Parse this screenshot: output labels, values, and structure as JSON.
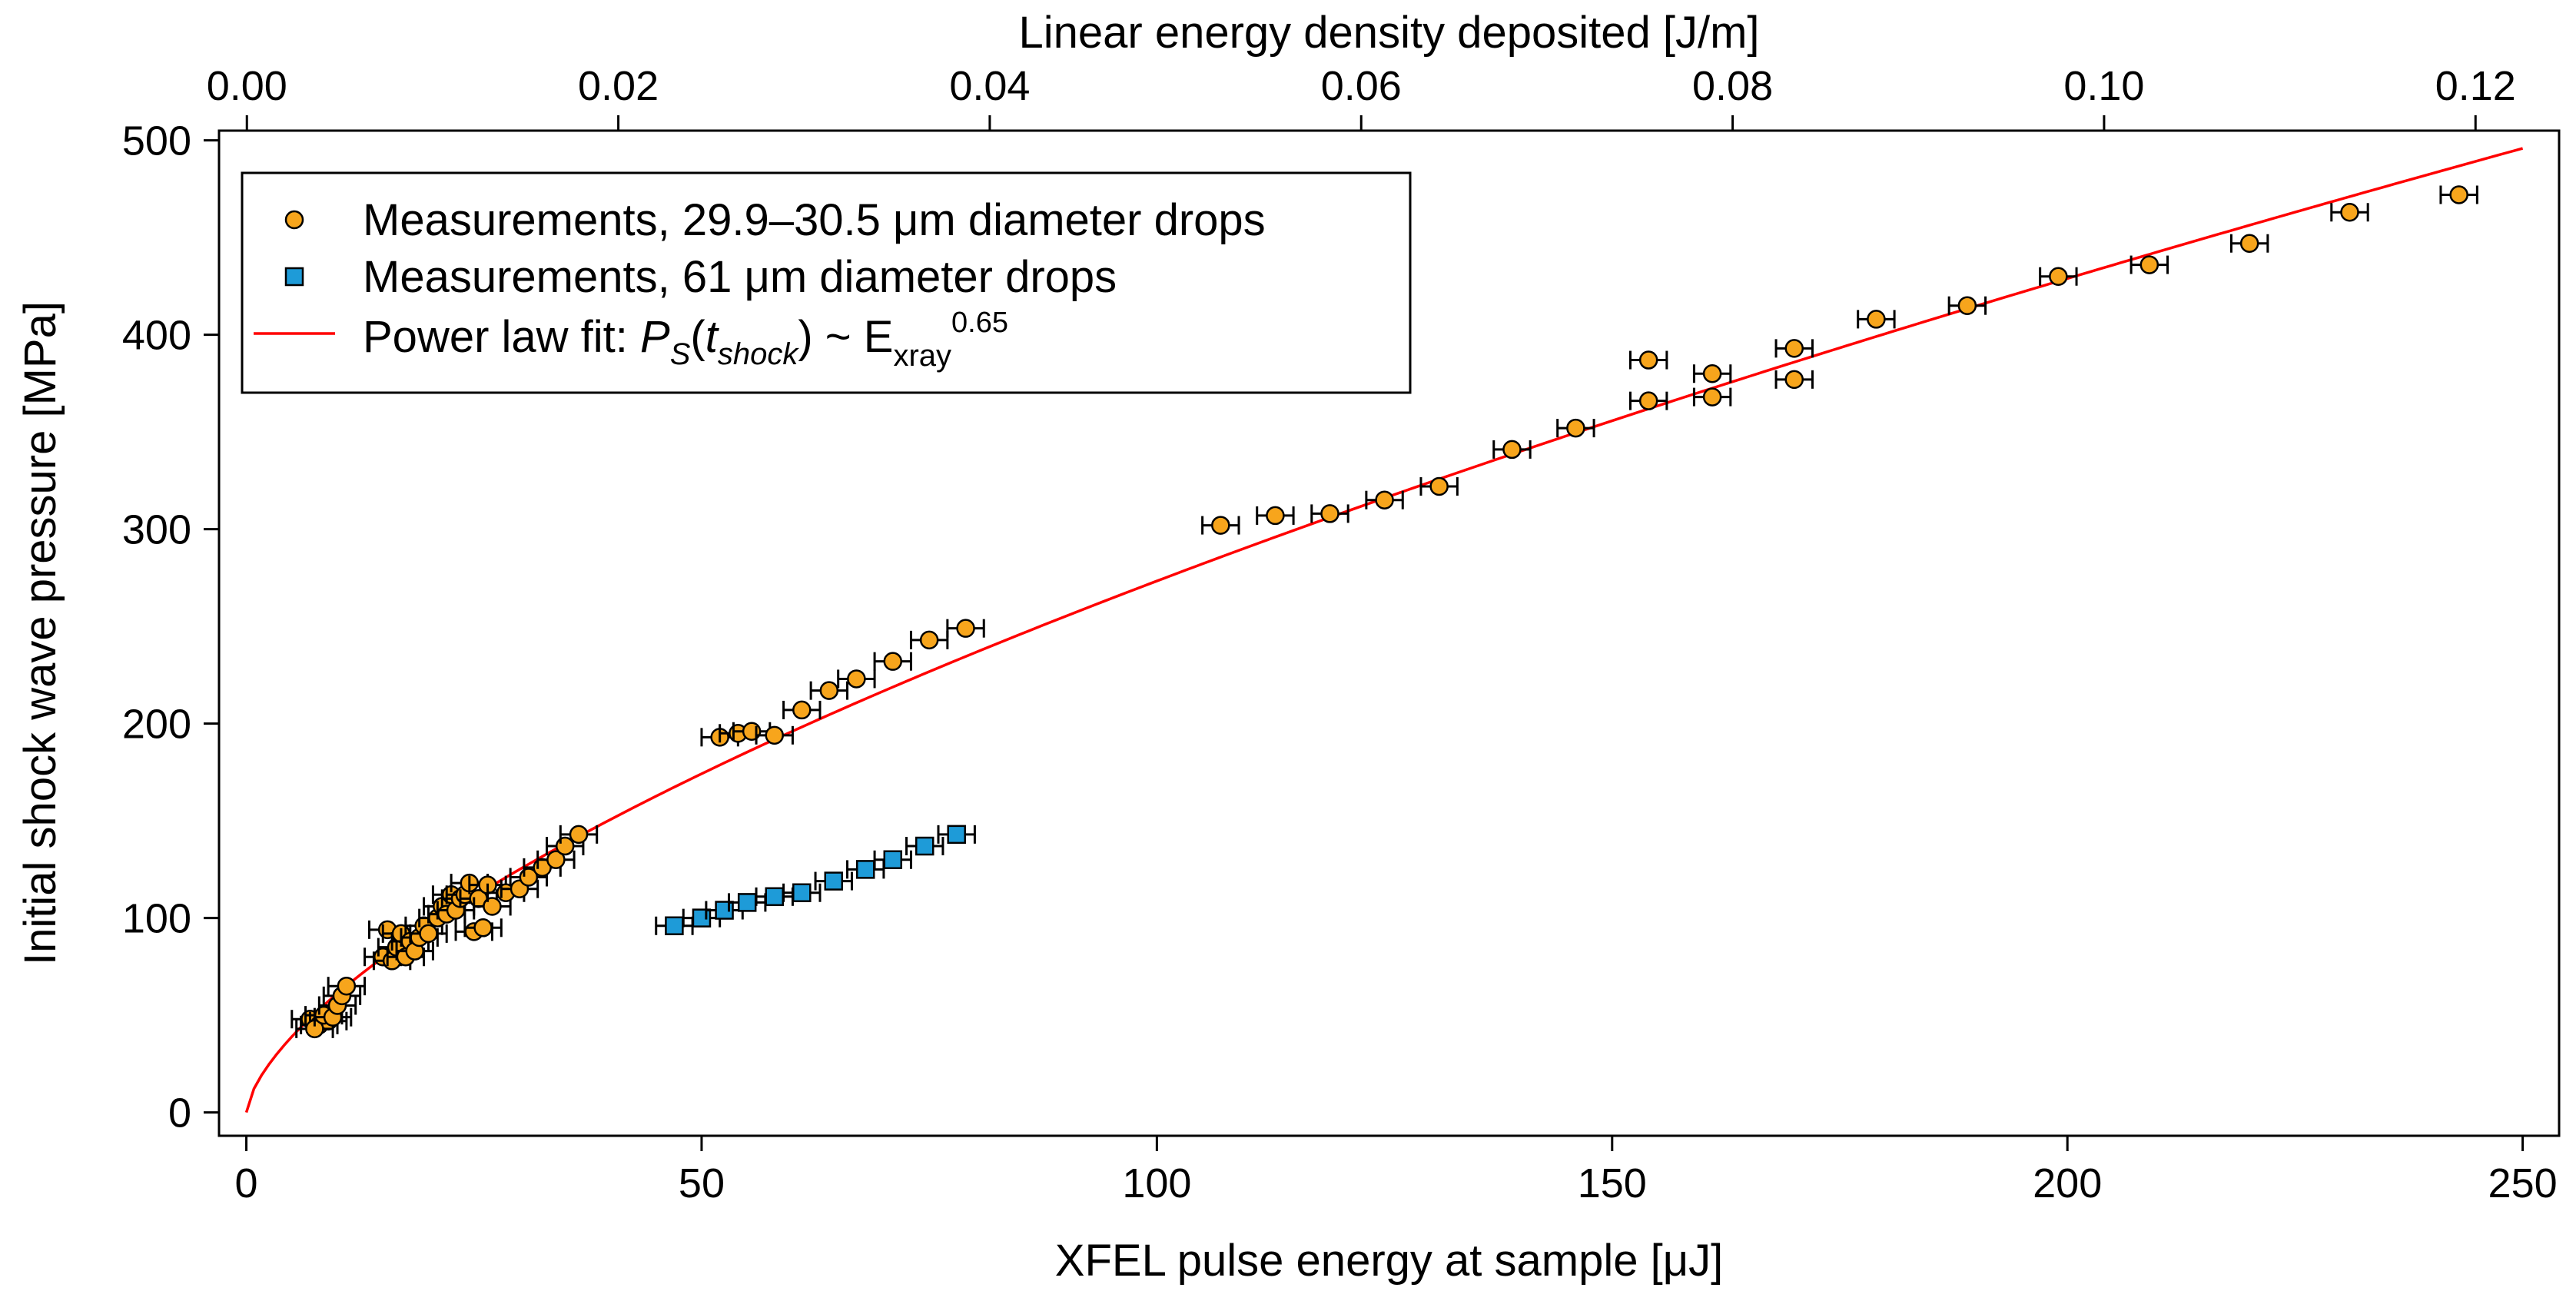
{
  "chart_data": {
    "type": "scatter",
    "title": "",
    "xlabel": "XFEL pulse energy at sample [μJ]",
    "ylabel": "Initial shock wave pressure [MPa]",
    "x2label": "Linear energy density deposited [J/m]",
    "xlim": [
      -3,
      254
    ],
    "ylim": [
      -12,
      505
    ],
    "x2lim": [
      -0.0015,
      0.1245
    ],
    "xticks": [
      0,
      50,
      100,
      150,
      200,
      250
    ],
    "xtick_labels": [
      "0",
      "50",
      "100",
      "150",
      "200",
      "250"
    ],
    "yticks": [
      0,
      100,
      200,
      300,
      400,
      500
    ],
    "ytick_labels": [
      "0",
      "100",
      "200",
      "300",
      "400",
      "500"
    ],
    "x2ticks": [
      0.0,
      0.02,
      0.04,
      0.06,
      0.08,
      0.1,
      0.12
    ],
    "x2tick_labels": [
      "0.00",
      "0.02",
      "0.04",
      "0.06",
      "0.08",
      "0.10",
      "0.12"
    ],
    "grid": false,
    "legend_position": "top-left",
    "series": [
      {
        "name": "Measurements, 29.9–30.5 μm diameter drops",
        "marker": "circle",
        "color": "#F7A51C",
        "x_error": 2,
        "points": [
          [
            7,
            48
          ],
          [
            8,
            45
          ],
          [
            9,
            47
          ],
          [
            7.5,
            43
          ],
          [
            8.5,
            50
          ],
          [
            9.5,
            49
          ],
          [
            10,
            55
          ],
          [
            10.5,
            60
          ],
          [
            11,
            65
          ],
          [
            15,
            80
          ],
          [
            15.5,
            94
          ],
          [
            16,
            78
          ],
          [
            16.5,
            85
          ],
          [
            17,
            92
          ],
          [
            17.5,
            80
          ],
          [
            18,
            88
          ],
          [
            18.5,
            83
          ],
          [
            19,
            90
          ],
          [
            19.5,
            96
          ],
          [
            20,
            92
          ],
          [
            21,
            100
          ],
          [
            21.5,
            106
          ],
          [
            22,
            102
          ],
          [
            22.5,
            112
          ],
          [
            23,
            104
          ],
          [
            23.5,
            110
          ],
          [
            24,
            112
          ],
          [
            24.5,
            118
          ],
          [
            25,
            93
          ],
          [
            25.5,
            110
          ],
          [
            26,
            95
          ],
          [
            26.5,
            117
          ],
          [
            27,
            106
          ],
          [
            28.5,
            113
          ],
          [
            30,
            115
          ],
          [
            31,
            121
          ],
          [
            32.5,
            126
          ],
          [
            34,
            130
          ],
          [
            35,
            137
          ],
          [
            36.5,
            143
          ],
          [
            52,
            193
          ],
          [
            54,
            195
          ],
          [
            55.5,
            196
          ],
          [
            58,
            194
          ],
          [
            61,
            207
          ],
          [
            64,
            217
          ],
          [
            67,
            223
          ],
          [
            71,
            232
          ],
          [
            75,
            243
          ],
          [
            79,
            249
          ],
          [
            107,
            302
          ],
          [
            113,
            307
          ],
          [
            119,
            308
          ],
          [
            125,
            315
          ],
          [
            131,
            322
          ],
          [
            139,
            341
          ],
          [
            146,
            352
          ],
          [
            154,
            366
          ],
          [
            154,
            387
          ],
          [
            161,
            380
          ],
          [
            161,
            368
          ],
          [
            170,
            393
          ],
          [
            170,
            377
          ],
          [
            179,
            408
          ],
          [
            189,
            415
          ],
          [
            199,
            430
          ],
          [
            209,
            436
          ],
          [
            220,
            447
          ],
          [
            231,
            463
          ],
          [
            243,
            472
          ]
        ]
      },
      {
        "name": "Measurements, 61 μm diameter drops",
        "marker": "square",
        "color": "#1E9BD8",
        "x_error": 2,
        "points": [
          [
            47,
            96
          ],
          [
            50,
            100
          ],
          [
            52.5,
            104
          ],
          [
            55,
            108
          ],
          [
            58,
            111
          ],
          [
            61,
            113
          ],
          [
            64.5,
            119
          ],
          [
            68,
            125
          ],
          [
            71,
            130
          ],
          [
            74.5,
            137
          ],
          [
            78,
            143
          ]
        ]
      },
      {
        "name": "Power law fit: ",
        "kind": "line",
        "color": "#FF0000",
        "model": {
          "formula": "y = a * x^b",
          "a": 13.7,
          "b": 0.65
        },
        "x_range": [
          0,
          250
        ]
      }
    ],
    "legend": {
      "fit_label_prefix": "Power law fit: ",
      "fit_symbol_p": "P",
      "fit_sub_s": "S",
      "fit_paren_open": "(",
      "fit_symbol_t": "t",
      "fit_sub_shock": "shock",
      "fit_paren_close": ") ~ E",
      "fit_sub_xray": "xray",
      "fit_exponent": "0.65"
    }
  }
}
